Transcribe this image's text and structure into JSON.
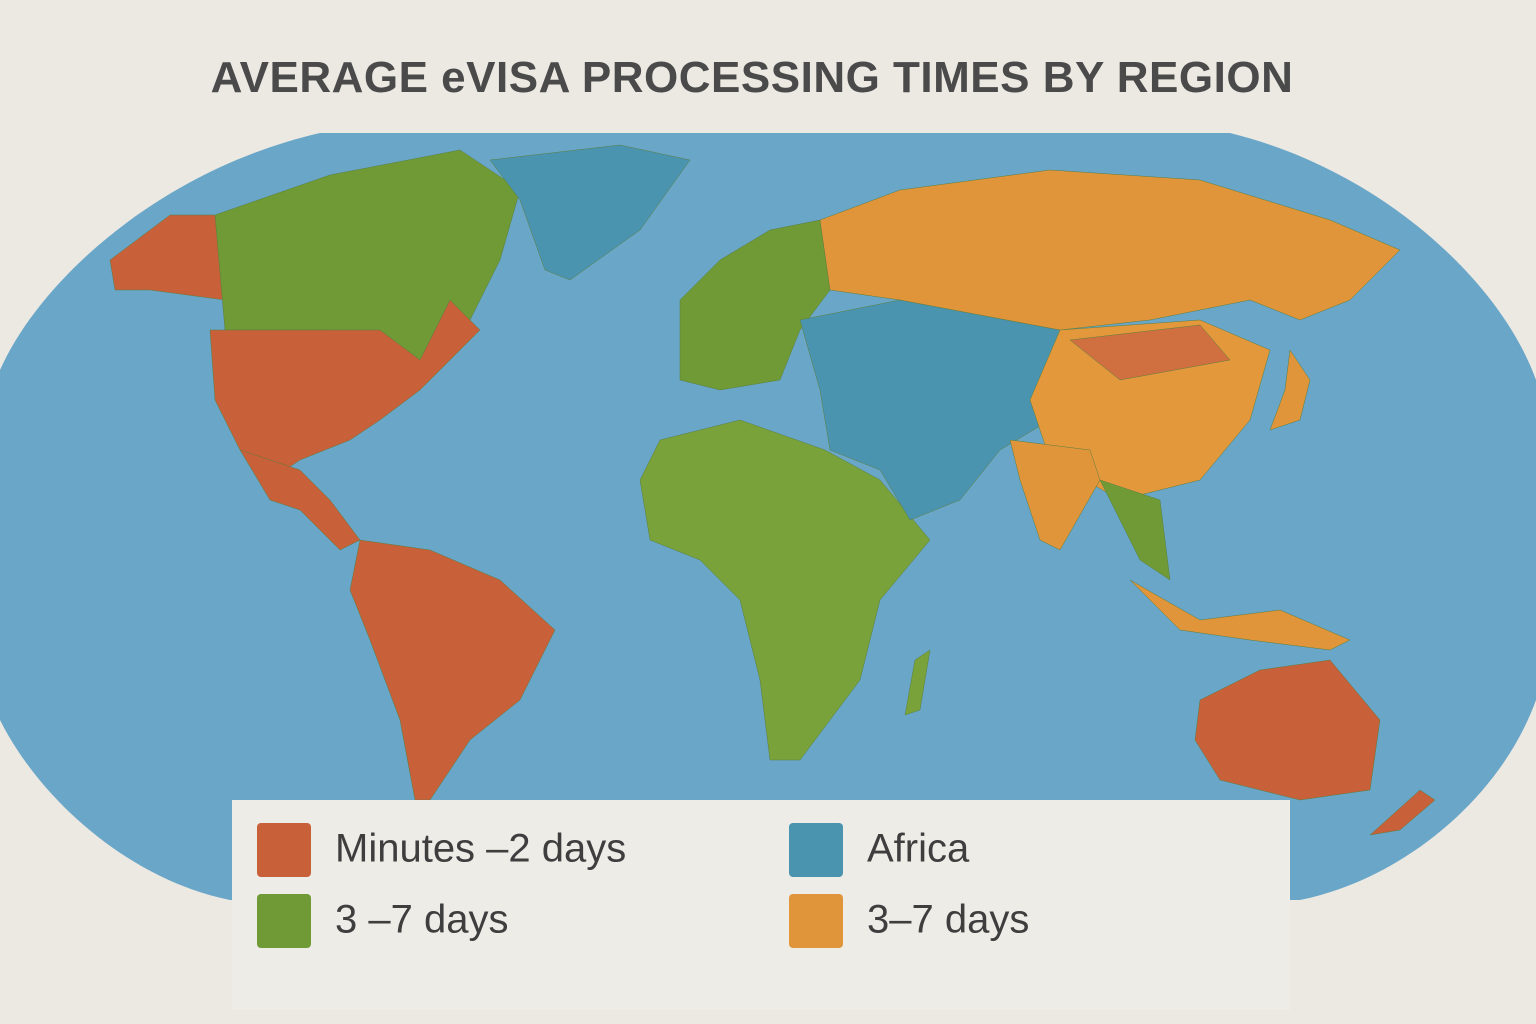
{
  "title": "AVERAGE eVISA PROCESSING TIMES BY REGION",
  "legend": {
    "items": [
      {
        "label": "Minutes –2 days",
        "color": "#c8603a"
      },
      {
        "label": "Africa",
        "color": "#4a94b0"
      },
      {
        "label": "3 –7 days",
        "color": "#6f9a35"
      },
      {
        "label": "3–7 days",
        "color": "#e0953a"
      }
    ]
  }
}
